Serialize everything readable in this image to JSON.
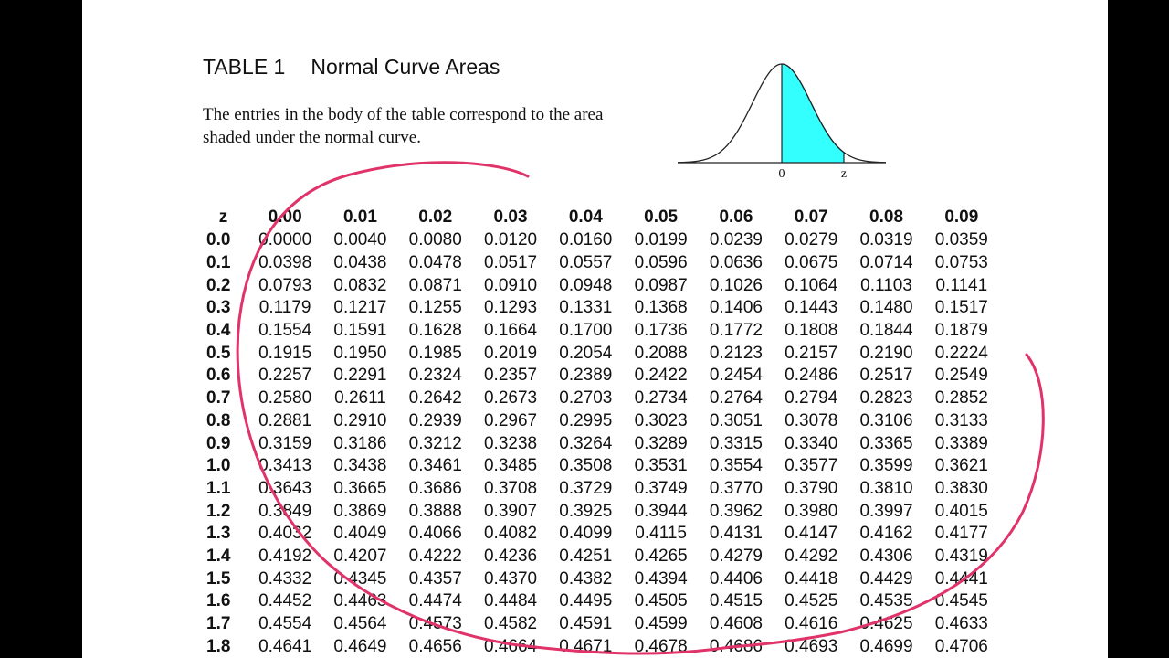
{
  "header": {
    "table_number": "TABLE 1",
    "title": "Normal Curve Areas",
    "description": "The entries in the body of the table correspond to the area shaded under the normal curve."
  },
  "figure": {
    "zero_label": "0",
    "z_label": "z",
    "shade_color": "#33ffff"
  },
  "table": {
    "z_header": "z",
    "columns": [
      "0.00",
      "0.01",
      "0.02",
      "0.03",
      "0.04",
      "0.05",
      "0.06",
      "0.07",
      "0.08",
      "0.09"
    ],
    "rows": [
      {
        "z": "0.0",
        "values": [
          "0.0000",
          "0.0040",
          "0.0080",
          "0.0120",
          "0.0160",
          "0.0199",
          "0.0239",
          "0.0279",
          "0.0319",
          "0.0359"
        ]
      },
      {
        "z": "0.1",
        "values": [
          "0.0398",
          "0.0438",
          "0.0478",
          "0.0517",
          "0.0557",
          "0.0596",
          "0.0636",
          "0.0675",
          "0.0714",
          "0.0753"
        ]
      },
      {
        "z": "0.2",
        "values": [
          "0.0793",
          "0.0832",
          "0.0871",
          "0.0910",
          "0.0948",
          "0.0987",
          "0.1026",
          "0.1064",
          "0.1103",
          "0.1141"
        ]
      },
      {
        "z": "0.3",
        "values": [
          "0.1179",
          "0.1217",
          "0.1255",
          "0.1293",
          "0.1331",
          "0.1368",
          "0.1406",
          "0.1443",
          "0.1480",
          "0.1517"
        ]
      },
      {
        "z": "0.4",
        "values": [
          "0.1554",
          "0.1591",
          "0.1628",
          "0.1664",
          "0.1700",
          "0.1736",
          "0.1772",
          "0.1808",
          "0.1844",
          "0.1879"
        ]
      },
      {
        "z": "0.5",
        "values": [
          "0.1915",
          "0.1950",
          "0.1985",
          "0.2019",
          "0.2054",
          "0.2088",
          "0.2123",
          "0.2157",
          "0.2190",
          "0.2224"
        ]
      },
      {
        "z": "0.6",
        "values": [
          "0.2257",
          "0.2291",
          "0.2324",
          "0.2357",
          "0.2389",
          "0.2422",
          "0.2454",
          "0.2486",
          "0.2517",
          "0.2549"
        ]
      },
      {
        "z": "0.7",
        "values": [
          "0.2580",
          "0.2611",
          "0.2642",
          "0.2673",
          "0.2703",
          "0.2734",
          "0.2764",
          "0.2794",
          "0.2823",
          "0.2852"
        ]
      },
      {
        "z": "0.8",
        "values": [
          "0.2881",
          "0.2910",
          "0.2939",
          "0.2967",
          "0.2995",
          "0.3023",
          "0.3051",
          "0.3078",
          "0.3106",
          "0.3133"
        ]
      },
      {
        "z": "0.9",
        "values": [
          "0.3159",
          "0.3186",
          "0.3212",
          "0.3238",
          "0.3264",
          "0.3289",
          "0.3315",
          "0.3340",
          "0.3365",
          "0.3389"
        ]
      },
      {
        "z": "1.0",
        "values": [
          "0.3413",
          "0.3438",
          "0.3461",
          "0.3485",
          "0.3508",
          "0.3531",
          "0.3554",
          "0.3577",
          "0.3599",
          "0.3621"
        ]
      },
      {
        "z": "1.1",
        "values": [
          "0.3643",
          "0.3665",
          "0.3686",
          "0.3708",
          "0.3729",
          "0.3749",
          "0.3770",
          "0.3790",
          "0.3810",
          "0.3830"
        ]
      },
      {
        "z": "1.2",
        "values": [
          "0.3849",
          "0.3869",
          "0.3888",
          "0.3907",
          "0.3925",
          "0.3944",
          "0.3962",
          "0.3980",
          "0.3997",
          "0.4015"
        ]
      },
      {
        "z": "1.3",
        "values": [
          "0.4032",
          "0.4049",
          "0.4066",
          "0.4082",
          "0.4099",
          "0.4115",
          "0.4131",
          "0.4147",
          "0.4162",
          "0.4177"
        ]
      },
      {
        "z": "1.4",
        "values": [
          "0.4192",
          "0.4207",
          "0.4222",
          "0.4236",
          "0.4251",
          "0.4265",
          "0.4279",
          "0.4292",
          "0.4306",
          "0.4319"
        ]
      },
      {
        "z": "1.5",
        "values": [
          "0.4332",
          "0.4345",
          "0.4357",
          "0.4370",
          "0.4382",
          "0.4394",
          "0.4406",
          "0.4418",
          "0.4429",
          "0.4441"
        ]
      },
      {
        "z": "1.6",
        "values": [
          "0.4452",
          "0.4463",
          "0.4474",
          "0.4484",
          "0.4495",
          "0.4505",
          "0.4515",
          "0.4525",
          "0.4535",
          "0.4545"
        ]
      },
      {
        "z": "1.7",
        "values": [
          "0.4554",
          "0.4564",
          "0.4573",
          "0.4582",
          "0.4591",
          "0.4599",
          "0.4608",
          "0.4616",
          "0.4625",
          "0.4633"
        ]
      },
      {
        "z": "1.8",
        "values": [
          "0.4641",
          "0.4649",
          "0.4656",
          "0.4664",
          "0.4671",
          "0.4678",
          "0.4686",
          "0.4693",
          "0.4699",
          "0.4706"
        ]
      }
    ]
  },
  "annotation": {
    "ink_color": "#e0336a"
  }
}
